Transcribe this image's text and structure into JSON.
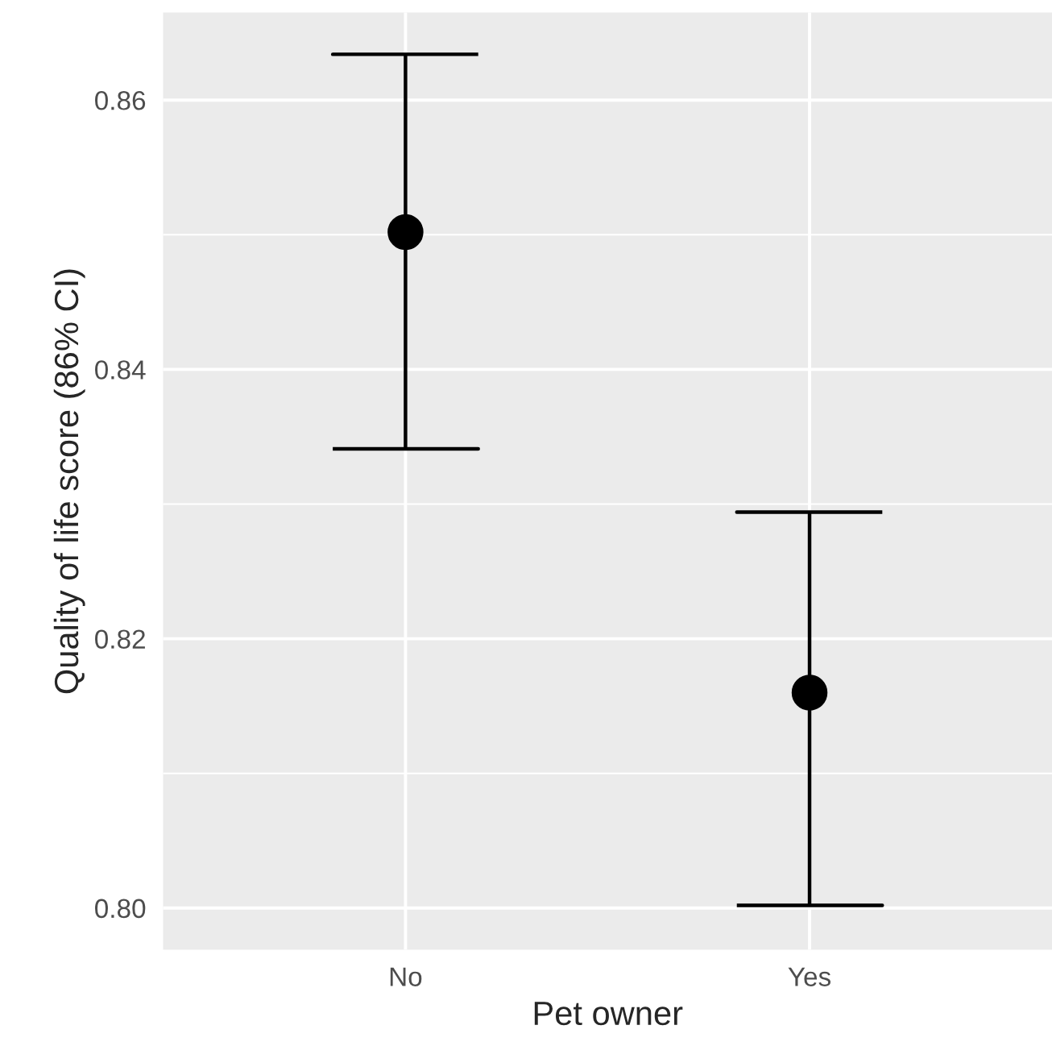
{
  "chart_data": {
    "type": "scatter",
    "xlabel": "Pet owner",
    "ylabel": "Quality of life score (86% CI)",
    "categories": [
      "No",
      "Yes"
    ],
    "series": [
      {
        "color": "#000000",
        "values": [
          0.8502,
          0.816
        ],
        "errors": [
          [
            0.8341,
            0.8634
          ],
          [
            0.8002,
            0.8294
          ]
        ]
      }
    ],
    "ylim": [
      0.7969,
      0.8665
    ],
    "yticks": [
      {
        "value": 0.8,
        "label": "0.80"
      },
      0.82,
      0.84,
      0.86
    ],
    "grid": true,
    "marker": "circle"
  }
}
